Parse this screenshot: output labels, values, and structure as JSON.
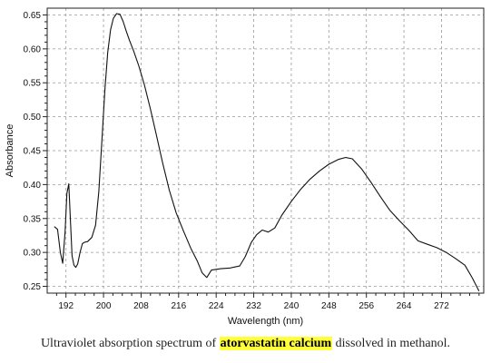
{
  "chart_data": {
    "type": "line",
    "title": "",
    "xlabel": "Wavelength (nm)",
    "ylabel": "Absorbance",
    "xlim": [
      188,
      281
    ],
    "ylim": [
      0.24,
      0.66
    ],
    "xticks": [
      192,
      200,
      208,
      216,
      224,
      232,
      240,
      248,
      256,
      264,
      272
    ],
    "yticks": [
      0.25,
      0.3,
      0.35,
      0.4,
      0.45,
      0.5,
      0.55,
      0.6,
      0.65
    ],
    "ytick_labels": [
      "0.25",
      "0.30",
      "0.35",
      "0.40",
      "0.45",
      "0.50",
      "0.55",
      "0.60",
      "0.65"
    ],
    "grid": true,
    "line_color": "#111111",
    "series": [
      {
        "x": [
          189.5,
          190.2,
          190.8,
          191.3,
          191.8,
          192.2,
          192.6,
          192.9,
          193.3,
          193.7,
          194.1,
          194.5,
          195.0,
          195.5,
          196.0,
          196.6,
          197.5,
          198.3,
          199.0,
          199.7,
          200.3,
          200.9,
          201.5,
          202.1,
          202.8,
          203.5,
          204.2,
          204.8,
          205.5,
          206.4,
          207.5,
          208.7,
          210.0,
          211.3,
          212.6,
          214.0,
          215.5,
          217.0,
          218.6,
          220.0,
          221.0,
          222.0,
          223.0,
          225.0,
          227.0,
          229.0,
          230.2,
          231.5,
          232.6,
          233.8,
          235.1,
          236.5,
          238.0,
          240.0,
          242.0,
          244.0,
          246.0,
          248.0,
          250.0,
          251.6,
          253.0,
          255.0,
          257.0,
          259.0,
          261.0,
          263.0,
          265.0,
          267.0,
          269.0,
          271.0,
          273.0,
          275.0,
          277.0,
          278.6,
          280.0
        ],
        "y": [
          0.338,
          0.334,
          0.3,
          0.284,
          0.33,
          0.387,
          0.401,
          0.356,
          0.295,
          0.281,
          0.278,
          0.283,
          0.3,
          0.313,
          0.315,
          0.316,
          0.322,
          0.34,
          0.39,
          0.47,
          0.54,
          0.595,
          0.628,
          0.645,
          0.652,
          0.651,
          0.64,
          0.627,
          0.613,
          0.597,
          0.575,
          0.547,
          0.511,
          0.472,
          0.432,
          0.392,
          0.358,
          0.332,
          0.306,
          0.287,
          0.27,
          0.263,
          0.274,
          0.276,
          0.277,
          0.28,
          0.294,
          0.315,
          0.326,
          0.333,
          0.33,
          0.336,
          0.355,
          0.375,
          0.393,
          0.408,
          0.42,
          0.43,
          0.437,
          0.44,
          0.438,
          0.423,
          0.403,
          0.382,
          0.362,
          0.347,
          0.333,
          0.317,
          0.312,
          0.307,
          0.3,
          0.291,
          0.281,
          0.262,
          0.243
        ]
      }
    ]
  },
  "caption": {
    "before": "Ultraviolet absorption spectrum of ",
    "highlight": "atorvastatin calcium",
    "after": " dissolved in methanol."
  }
}
